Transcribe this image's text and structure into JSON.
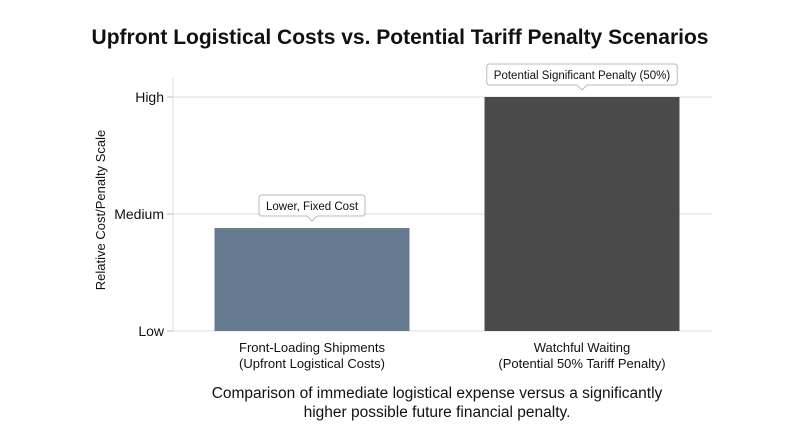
{
  "chart_data": {
    "type": "bar",
    "title": "Upfront Logistical Costs vs. Potential Tariff Penalty Scenarios",
    "ylabel": "Relative Cost/Penalty Scale",
    "xlabel": "",
    "ylim": [
      0,
      2.1
    ],
    "y_ticks": [
      {
        "value": 0,
        "label": "Low"
      },
      {
        "value": 1,
        "label": "Medium"
      },
      {
        "value": 2,
        "label": "High"
      }
    ],
    "categories": [
      [
        "Front-Loading Shipments",
        "(Upfront Logistical Costs)"
      ],
      [
        "Watchful Waiting",
        "(Potential 50% Tariff Penalty)"
      ]
    ],
    "values": [
      0.88,
      2.0
    ],
    "annotations": [
      "Lower, Fixed Cost",
      "Potential Significant Penalty (50%)"
    ],
    "colors": [
      "#667b90",
      "#4a4a4a"
    ],
    "grid": "horizontal",
    "legend": "none",
    "caption": [
      "Comparison of immediate logistical expense versus a significantly",
      "higher possible future financial penalty."
    ]
  }
}
